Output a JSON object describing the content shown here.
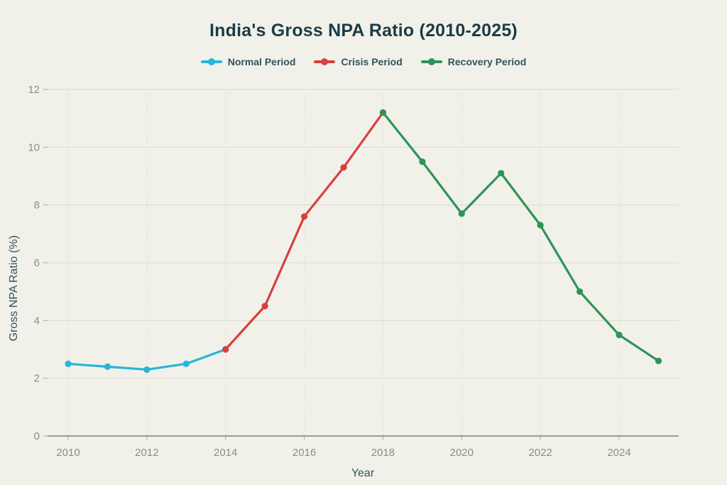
{
  "colors": {
    "background": "#f1f1ea",
    "title_text": "#1c3b47",
    "legend_text": "#33525c",
    "axis_text": "#33525c",
    "tick_text": "#8d8d87",
    "grid_horizontal": "#dbdbd2",
    "grid_vertical": "#dcdcd3",
    "axis_line": "#6b6b64",
    "tick_mark": "#a3a39c"
  },
  "chart_data": {
    "type": "line",
    "title": "India's Gross NPA Ratio (2010-2025)",
    "xlabel": "Year",
    "ylabel": "Gross NPA Ratio (%)",
    "xlim": [
      2010,
      2025.5
    ],
    "ylim": [
      0,
      12
    ],
    "xticks": [
      2010,
      2012,
      2014,
      2016,
      2018,
      2020,
      2022,
      2024
    ],
    "yticks": [
      0,
      2,
      4,
      6,
      8,
      10,
      12
    ],
    "grid": true,
    "legend_position": "top",
    "marker": "dot",
    "series": [
      {
        "name": "Normal Period",
        "color": "#29b5d8",
        "x": [
          2010,
          2011,
          2012,
          2013,
          2014
        ],
        "values": [
          2.5,
          2.4,
          2.3,
          2.5,
          3.0
        ]
      },
      {
        "name": "Crisis Period",
        "color": "#d8403c",
        "x": [
          2014,
          2015,
          2016,
          2017,
          2018
        ],
        "values": [
          3.0,
          4.5,
          7.6,
          9.3,
          11.2
        ]
      },
      {
        "name": "Recovery Period",
        "color": "#2d9455",
        "x": [
          2018,
          2019,
          2020,
          2021,
          2022,
          2023,
          2024,
          2025
        ],
        "values": [
          11.2,
          9.5,
          7.7,
          9.1,
          7.3,
          5.0,
          3.5,
          2.6
        ]
      }
    ]
  }
}
